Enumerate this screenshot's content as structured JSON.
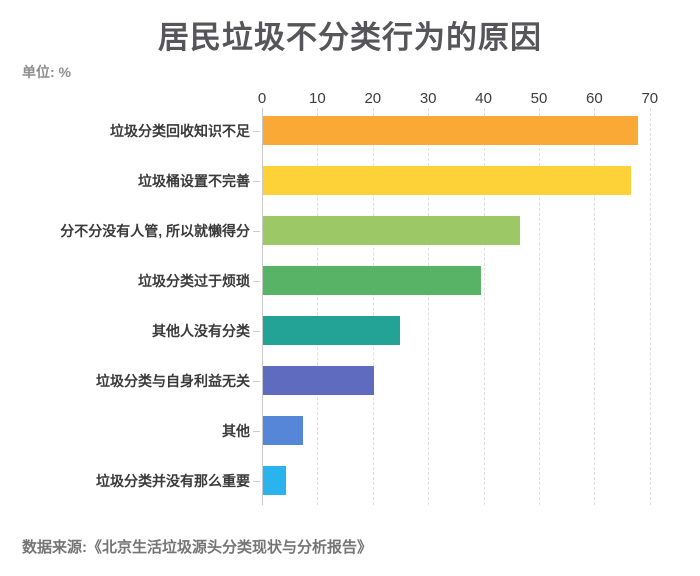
{
  "title": "居民垃圾不分类行为的原因",
  "unit_label": "单位: %",
  "source": "数据来源:《北京生活垃圾源头分类现状与分析报告》",
  "chart_data": {
    "type": "bar",
    "orientation": "horizontal",
    "title": "居民垃圾不分类行为的原因",
    "unit": "%",
    "xlabel": "",
    "ylabel": "",
    "xlim": [
      0,
      70
    ],
    "x_ticks": [
      0,
      10,
      20,
      30,
      40,
      50,
      60,
      70
    ],
    "axis_position": "top",
    "grid": "vertical-dashed",
    "legend": "none",
    "categories": [
      "垃圾分类回收知识不足",
      "垃圾桶设置不完善",
      "分不分没有人管, 所以就懒得分",
      "垃圾分类过于烦琐",
      "其他人没有分类",
      "垃圾分类与自身利益无关",
      "其他",
      "垃圾分类并没有那么重要"
    ],
    "values": [
      67.7,
      66.4,
      46.3,
      39.3,
      24.8,
      20.1,
      7.2,
      4.1
    ],
    "bar_colors": [
      "#FAA836",
      "#FDD238",
      "#9CC865",
      "#58B366",
      "#23A396",
      "#5F6BBE",
      "#5586D8",
      "#2BB3EE"
    ]
  },
  "colors": {
    "background": "#FFFFFF",
    "title_text": "#55555A",
    "unit_text": "#8E8E8E",
    "tick_text": "#3D3D3D",
    "category_text": "#3A3A3A",
    "gridline": "#DEDEDE",
    "axis_line": "#C9C9C9",
    "source_text": "#757575"
  }
}
